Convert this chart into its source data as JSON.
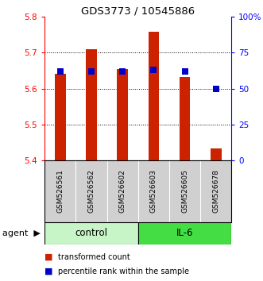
{
  "title": "GDS3773 / 10545886",
  "samples": [
    "GSM526561",
    "GSM526562",
    "GSM526602",
    "GSM526603",
    "GSM526605",
    "GSM526678"
  ],
  "red_values": [
    5.64,
    5.71,
    5.655,
    5.758,
    5.632,
    5.432
  ],
  "blue_values": [
    62,
    62,
    62,
    63,
    62,
    50
  ],
  "ymin": 5.4,
  "ymax": 5.8,
  "yticks_left": [
    5.4,
    5.5,
    5.6,
    5.7,
    5.8
  ],
  "yticks_right": [
    0,
    25,
    50,
    75,
    100
  ],
  "ytick_right_labels": [
    "0",
    "25",
    "50",
    "75",
    "100%"
  ],
  "control_color": "#c8f5c8",
  "il6_color": "#44dd44",
  "bar_color": "#cc2200",
  "blue_color": "#0000cc",
  "gray_bg": "#d0d0d0",
  "bar_width": 0.35,
  "baseline": 5.4,
  "gridlines": [
    5.5,
    5.6,
    5.7
  ],
  "legend_red": "transformed count",
  "legend_blue": "percentile rank within the sample",
  "agent_label": "agent"
}
